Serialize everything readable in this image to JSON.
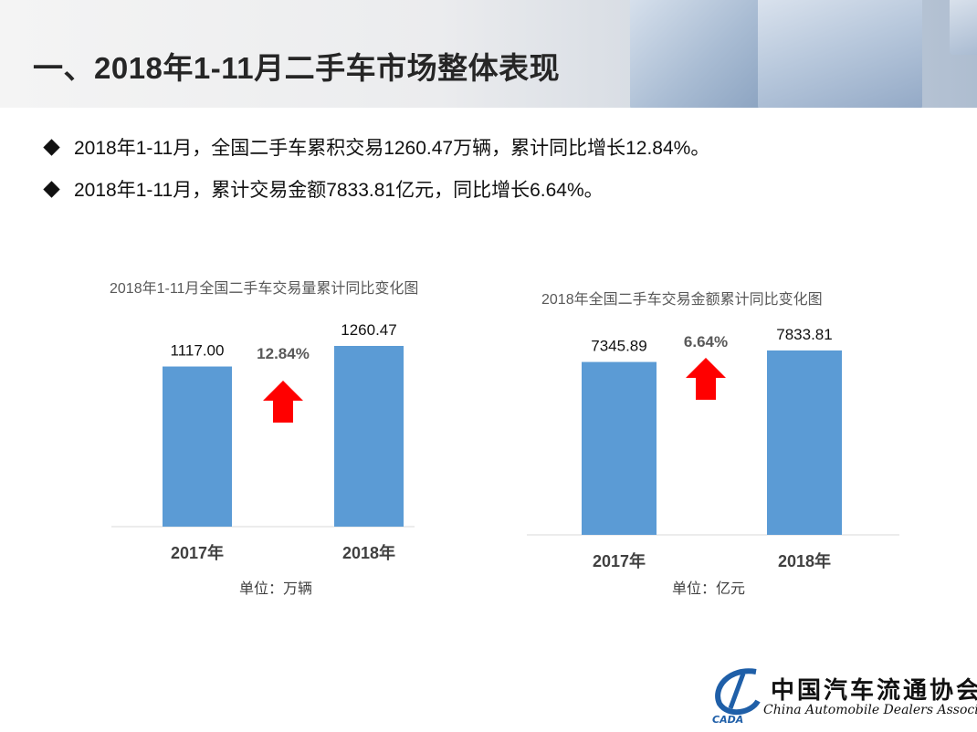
{
  "header": {
    "title": "一、2018年1-11月二手车市场整体表现"
  },
  "bullets": [
    "2018年1-11月，全国二手车累积交易1260.47万辆，累计同比增长12.84%。",
    "2018年1-11月，累计交易金额7833.81亿元，同比增长6.64%。"
  ],
  "colors": {
    "bar": "#5b9bd5",
    "arrow": "#ff0000",
    "axis": "#d9d9d9"
  },
  "icons": {
    "bullet": "diamond-bullet-icon",
    "growth": "up-arrow-icon"
  },
  "chart_data": [
    {
      "type": "bar",
      "title": "2018年1-11月全国二手车交易量累计同比变化图",
      "categories": [
        "2017年",
        "2018年"
      ],
      "values": [
        1117.0,
        1260.47
      ],
      "value_labels": [
        "1117.00",
        "1260.47"
      ],
      "growth_label": "12.84%",
      "unit": "单位：万辆",
      "ylim": [
        0,
        1260.47
      ],
      "grid": false
    },
    {
      "type": "bar",
      "title": "2018年全国二手车交易金额累计同比变化图",
      "categories": [
        "2017年",
        "2018年"
      ],
      "values": [
        7345.89,
        7833.81
      ],
      "value_labels": [
        "7345.89",
        "7833.81"
      ],
      "growth_label": "6.64%",
      "unit": "单位：亿元",
      "ylim": [
        0,
        7833.81
      ],
      "grid": false
    }
  ],
  "logo": {
    "name_cn": "中国汽车流通协会",
    "name_en": "China Automobile Dealers Association",
    "abbr": "CADA"
  }
}
